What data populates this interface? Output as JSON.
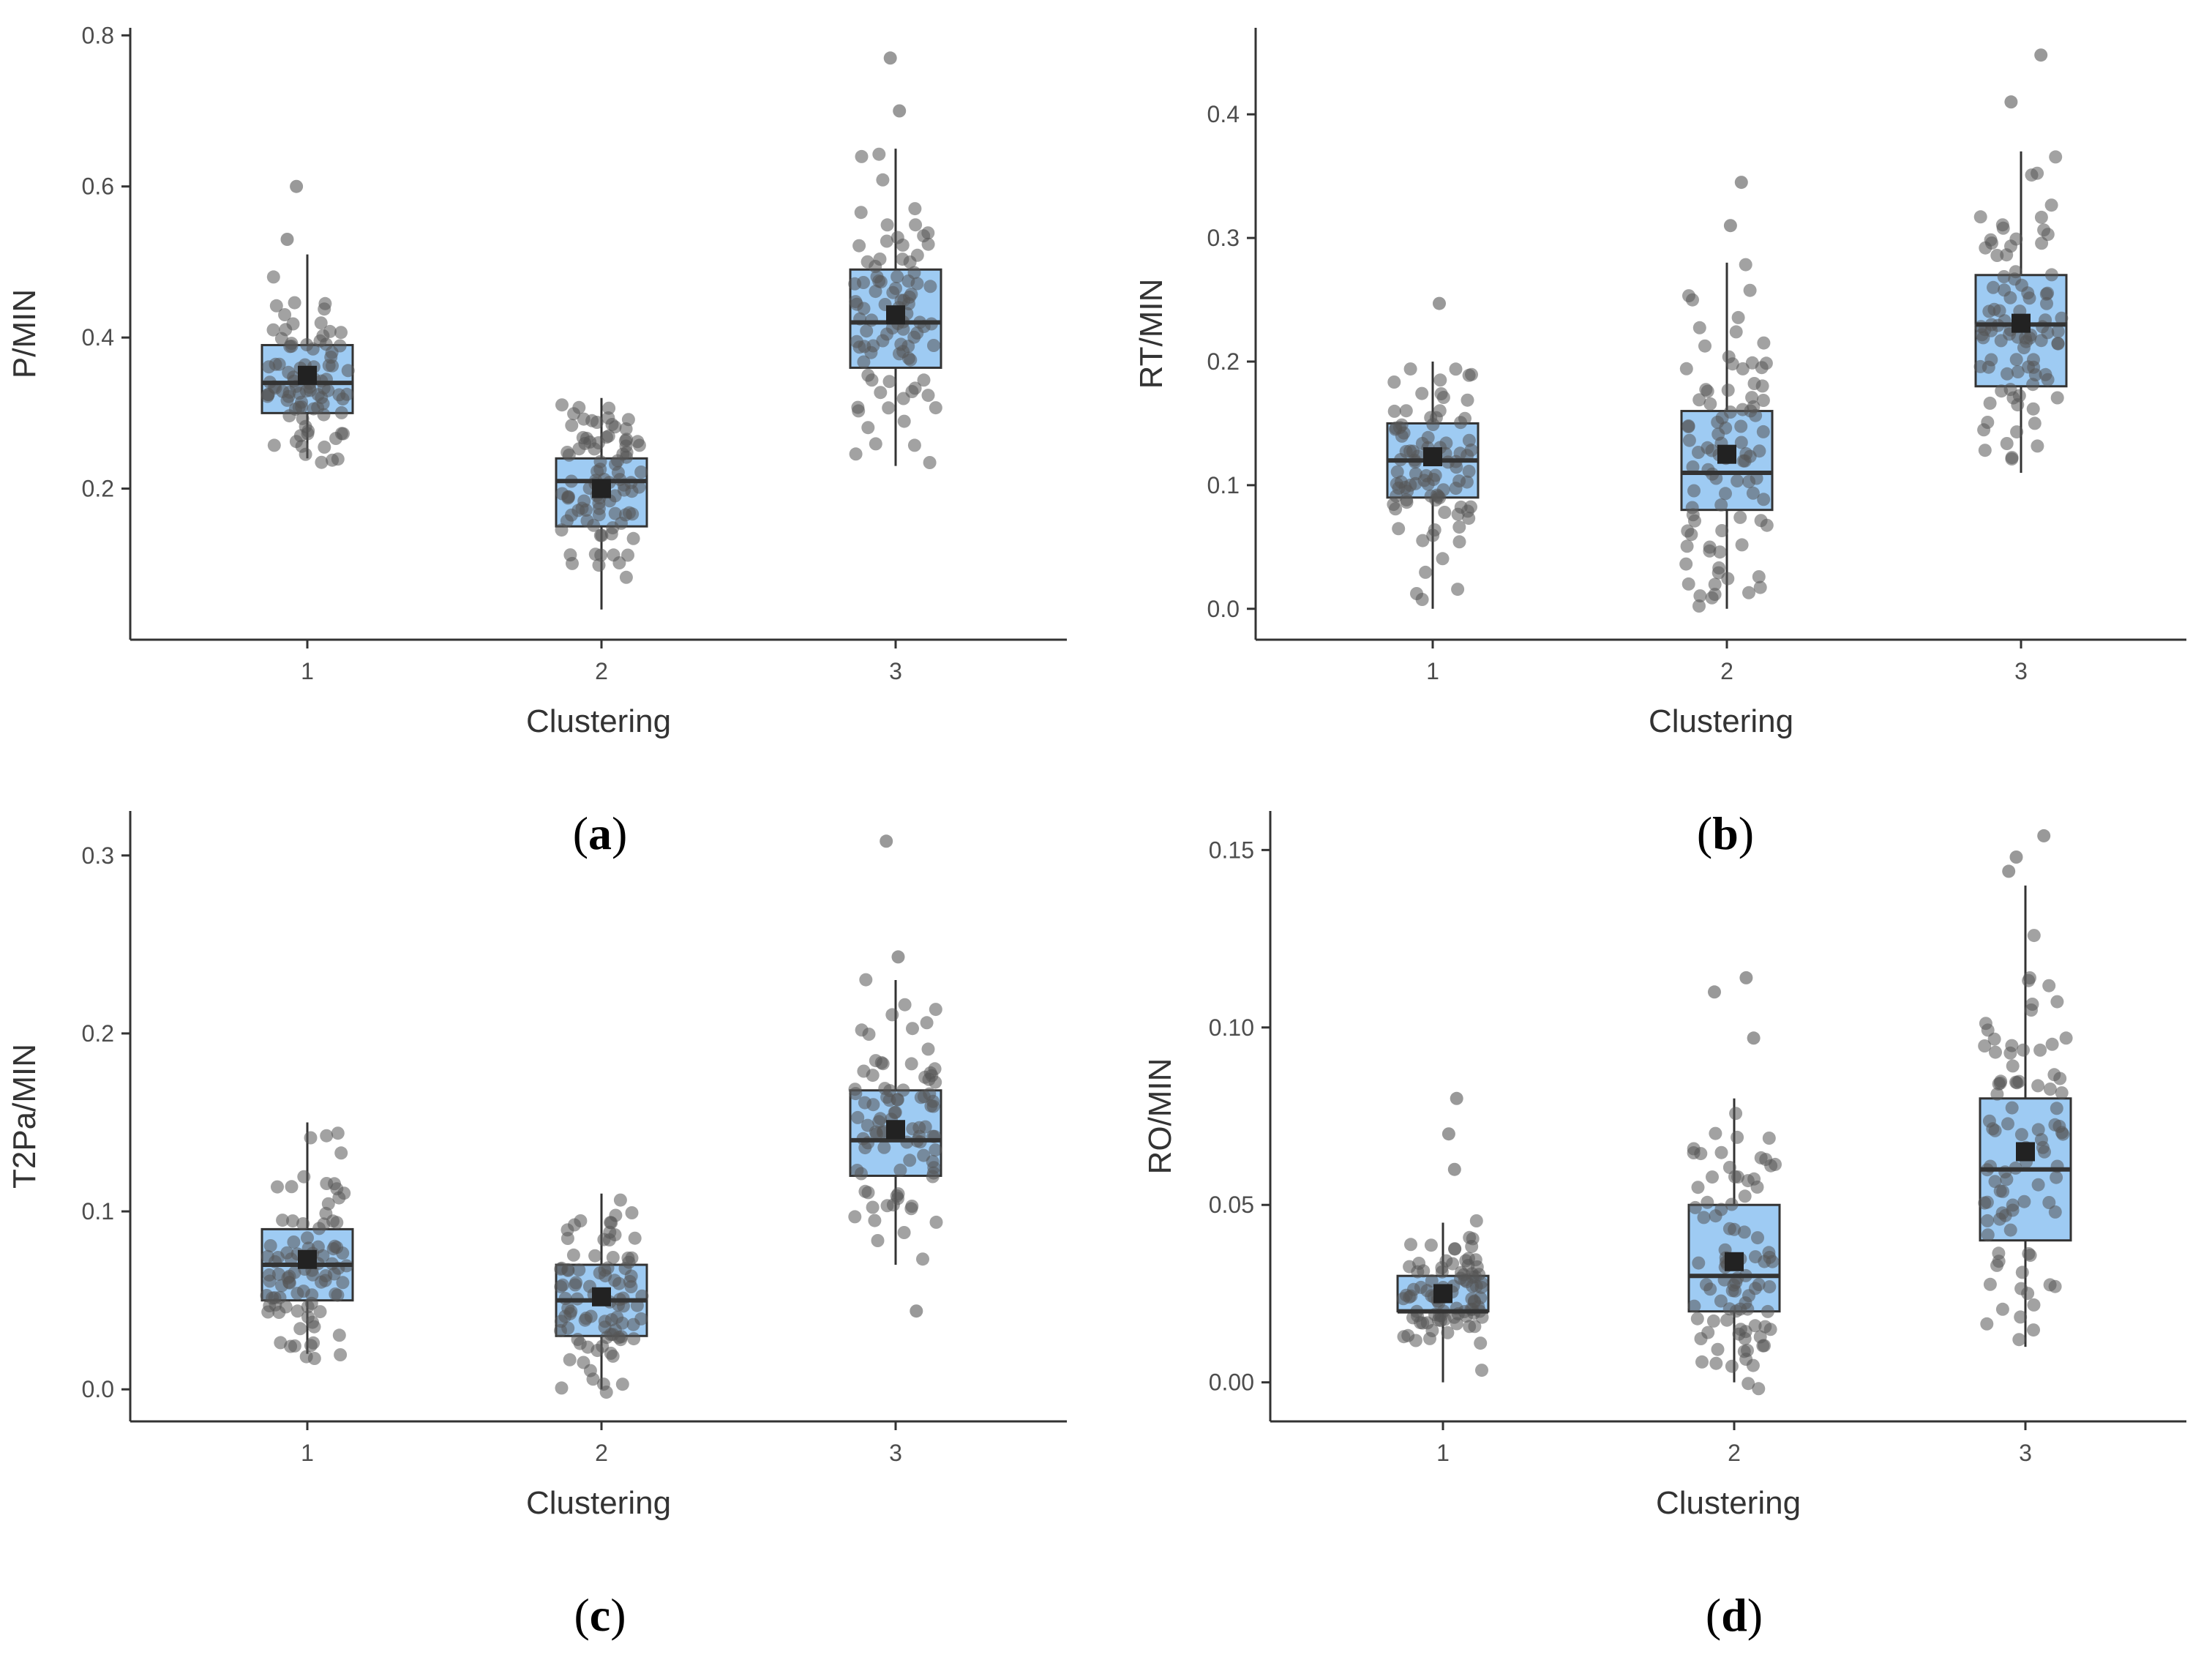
{
  "colors": {
    "box_fill": "#9ecbf3",
    "box_stroke": "#333333",
    "point": "#555555",
    "mean_marker": "#222222",
    "axis": "#333333",
    "text": "#4d4d4d"
  },
  "chart_data": [
    {
      "type": "box",
      "panel_label": "a",
      "xlabel": "Clustering",
      "ylabel": "P/MIN",
      "categories": [
        "1",
        "2",
        "3"
      ],
      "ylim": [
        0.0,
        0.81
      ],
      "yticks": [
        0.2,
        0.4,
        0.6,
        0.8
      ],
      "ytick_labels": [
        "0.2",
        "0.4",
        "0.6",
        "0.8"
      ],
      "xtick_labels": [
        "1",
        "2",
        "3"
      ],
      "boxes": [
        {
          "category": "1",
          "whisker_low": 0.24,
          "q1": 0.3,
          "median": 0.34,
          "q3": 0.39,
          "whisker_high": 0.51,
          "mean": 0.35,
          "outliers": [
            0.53,
            0.6
          ],
          "point_range": [
            0.23,
            0.51
          ]
        },
        {
          "category": "2",
          "whisker_low": 0.04,
          "q1": 0.15,
          "median": 0.21,
          "q3": 0.24,
          "whisker_high": 0.32,
          "mean": 0.2,
          "outliers": [],
          "point_range": [
            0.03,
            0.32
          ]
        },
        {
          "category": "3",
          "whisker_low": 0.23,
          "q1": 0.36,
          "median": 0.42,
          "q3": 0.49,
          "whisker_high": 0.65,
          "mean": 0.43,
          "outliers": [
            0.7,
            0.77
          ],
          "point_range": [
            0.23,
            0.65
          ]
        }
      ]
    },
    {
      "type": "box",
      "panel_label": "b",
      "xlabel": "Clustering",
      "ylabel": "RT/MIN",
      "categories": [
        "1",
        "2",
        "3"
      ],
      "ylim": [
        -0.025,
        0.47
      ],
      "yticks": [
        0.0,
        0.1,
        0.2,
        0.3,
        0.4
      ],
      "ytick_labels": [
        "0.0",
        "0.1",
        "0.2",
        "0.3",
        "0.4"
      ],
      "xtick_labels": [
        "1",
        "2",
        "3"
      ],
      "boxes": [
        {
          "category": "1",
          "whisker_low": 0.0,
          "q1": 0.09,
          "median": 0.12,
          "q3": 0.15,
          "whisker_high": 0.2,
          "mean": 0.123,
          "outliers": [
            0.247
          ],
          "point_range": [
            0.0,
            0.2
          ]
        },
        {
          "category": "2",
          "whisker_low": 0.0,
          "q1": 0.08,
          "median": 0.11,
          "q3": 0.16,
          "whisker_high": 0.28,
          "mean": 0.125,
          "outliers": [
            0.31,
            0.345
          ],
          "point_range": [
            -0.003,
            0.28
          ]
        },
        {
          "category": "3",
          "whisker_low": 0.11,
          "q1": 0.18,
          "median": 0.23,
          "q3": 0.27,
          "whisker_high": 0.37,
          "mean": 0.231,
          "outliers": [
            0.41,
            0.448
          ],
          "point_range": [
            0.108,
            0.37
          ]
        }
      ]
    },
    {
      "type": "box",
      "panel_label": "c",
      "xlabel": "Clustering",
      "ylabel": "T2Pa/MIN",
      "categories": [
        "1",
        "2",
        "3"
      ],
      "ylim": [
        -0.018,
        0.325
      ],
      "yticks": [
        0.0,
        0.1,
        0.2,
        0.3
      ],
      "ytick_labels": [
        "0.0",
        "0.1",
        "0.2",
        "0.3"
      ],
      "xtick_labels": [
        "1",
        "2",
        "3"
      ],
      "boxes": [
        {
          "category": "1",
          "whisker_low": 0.02,
          "q1": 0.05,
          "median": 0.07,
          "q3": 0.09,
          "whisker_high": 0.15,
          "mean": 0.073,
          "outliers": [],
          "point_range": [
            0.017,
            0.15
          ]
        },
        {
          "category": "2",
          "whisker_low": 0.0,
          "q1": 0.03,
          "median": 0.05,
          "q3": 0.07,
          "whisker_high": 0.11,
          "mean": 0.052,
          "outliers": [],
          "point_range": [
            -0.003,
            0.107
          ]
        },
        {
          "category": "3",
          "whisker_low": 0.07,
          "q1": 0.12,
          "median": 0.14,
          "q3": 0.168,
          "whisker_high": 0.23,
          "mean": 0.146,
          "outliers": [
            0.243,
            0.308,
            0.044
          ],
          "point_range": [
            0.07,
            0.235
          ]
        }
      ]
    },
    {
      "type": "box",
      "panel_label": "d",
      "xlabel": "Clustering",
      "ylabel": "RO/MIN",
      "categories": [
        "1",
        "2",
        "3"
      ],
      "ylim": [
        -0.011,
        0.161
      ],
      "yticks": [
        0.0,
        0.05,
        0.1,
        0.15
      ],
      "ytick_labels": [
        "0.00",
        "0.05",
        "0.10",
        "0.15"
      ],
      "xtick_labels": [
        "1",
        "2",
        "3"
      ],
      "boxes": [
        {
          "category": "1",
          "whisker_low": 0.0,
          "q1": 0.02,
          "median": 0.02,
          "q3": 0.03,
          "whisker_high": 0.045,
          "mean": 0.025,
          "outliers": [
            0.06,
            0.07,
            0.08
          ],
          "point_range": [
            -0.003,
            0.05
          ]
        },
        {
          "category": "2",
          "whisker_low": 0.0,
          "q1": 0.02,
          "median": 0.03,
          "q3": 0.05,
          "whisker_high": 0.08,
          "mean": 0.034,
          "outliers": [
            0.097,
            0.11,
            0.114
          ],
          "point_range": [
            -0.003,
            0.085
          ]
        },
        {
          "category": "3",
          "whisker_low": 0.01,
          "q1": 0.04,
          "median": 0.06,
          "q3": 0.08,
          "whisker_high": 0.14,
          "mean": 0.065,
          "outliers": [
            0.144,
            0.148,
            0.154
          ],
          "point_range": [
            0.009,
            0.135
          ]
        }
      ]
    }
  ]
}
